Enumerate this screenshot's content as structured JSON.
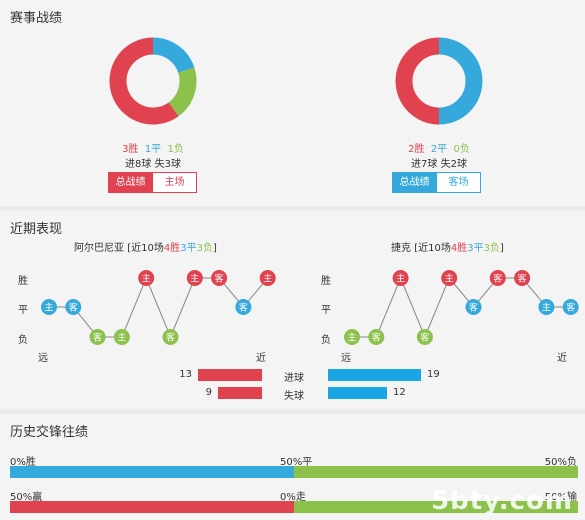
{
  "sections": {
    "match_record": "赛事战绩",
    "recent_form": "近期表现",
    "h2h": "历史交锋往绩"
  },
  "colors": {
    "win": "#e0434f",
    "draw": "#35a9dc",
    "loss": "#8cc14c",
    "wm": "#ffffff"
  },
  "left_team": {
    "record": {
      "wins": "3胜",
      "draws": "1平",
      "losses": "1负"
    },
    "goals": "进8球  失3球",
    "buttons": {
      "total": "总战绩",
      "venue": "主场"
    },
    "donut": {
      "wins": 3,
      "draws": 1,
      "losses": 1
    }
  },
  "right_team": {
    "record": {
      "wins": "2胜",
      "draws": "2平",
      "losses": "0负"
    },
    "goals": "进7球  失2球",
    "buttons": {
      "total": "总战绩",
      "venue": "客场"
    },
    "donut": {
      "wins": 2,
      "draws": 2,
      "losses": 0
    }
  },
  "recent": {
    "left_team_name": "阿尔巴尼亚",
    "left_summary": {
      "prefix": "[近10场",
      "wins": "4胜",
      "draws": "3平",
      "losses": "3负",
      "suffix": "]"
    },
    "right_team_name": "捷克",
    "right_summary": {
      "prefix": "[近10场",
      "wins": "4胜",
      "draws": "3平",
      "losses": "3负",
      "suffix": "]"
    },
    "y_labels": {
      "win": "胜",
      "draw": "平",
      "loss": "负"
    },
    "x_labels": {
      "far": "远",
      "near": "近"
    },
    "left_form": [
      {
        "venue": "主",
        "result": "draw"
      },
      {
        "venue": "客",
        "result": "draw"
      },
      {
        "venue": "客",
        "result": "loss"
      },
      {
        "venue": "主",
        "result": "loss"
      },
      {
        "venue": "主",
        "result": "win"
      },
      {
        "venue": "客",
        "result": "loss"
      },
      {
        "venue": "主",
        "result": "win"
      },
      {
        "venue": "客",
        "result": "win"
      },
      {
        "venue": "客",
        "result": "draw"
      },
      {
        "venue": "主",
        "result": "win"
      }
    ],
    "right_form": [
      {
        "venue": "主",
        "result": "loss"
      },
      {
        "venue": "客",
        "result": "loss"
      },
      {
        "venue": "主",
        "result": "win"
      },
      {
        "venue": "客",
        "result": "loss"
      },
      {
        "venue": "主",
        "result": "win"
      },
      {
        "venue": "客",
        "result": "draw"
      },
      {
        "venue": "客",
        "result": "win"
      },
      {
        "venue": "客",
        "result": "win"
      },
      {
        "venue": "主",
        "result": "draw"
      },
      {
        "venue": "客",
        "result": "draw"
      }
    ],
    "goals_for_label": "进球",
    "goals_against_label": "失球",
    "left_goals_for": "13",
    "left_goals_against": "9",
    "right_goals_for": "19",
    "right_goals_against": "12",
    "left_goals_for_value": 13,
    "left_goals_against_value": 9,
    "right_goals_for_value": 19,
    "right_goals_against_value": 12
  },
  "h2h": {
    "row1": {
      "left": "0%胜",
      "mid": "50%平",
      "right": "50%负",
      "win": 0,
      "draw": 50,
      "loss": 50
    },
    "row2": {
      "left": "50%赢",
      "mid": "0%走",
      "right": "50%输",
      "win": 50,
      "draw": 0,
      "loss": 50
    }
  },
  "watermark": "5bty.com"
}
